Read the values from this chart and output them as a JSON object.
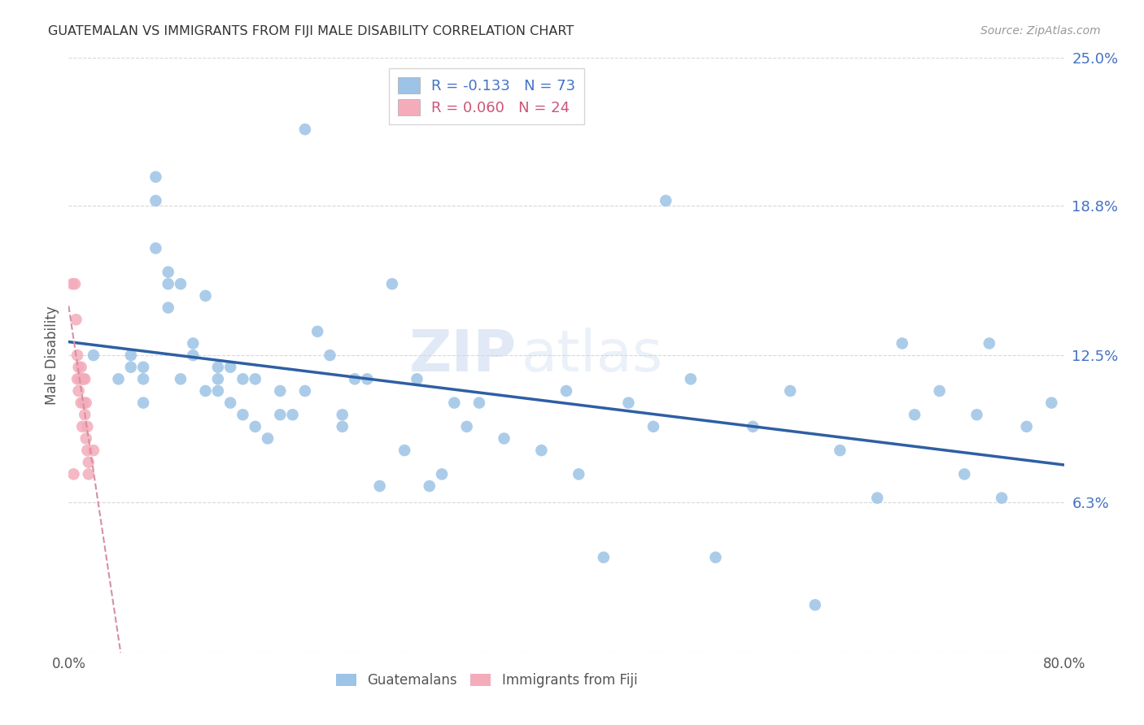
{
  "title": "GUATEMALAN VS IMMIGRANTS FROM FIJI MALE DISABILITY CORRELATION CHART",
  "source": "Source: ZipAtlas.com",
  "ylabel_label": "Male Disability",
  "xlim": [
    0.0,
    0.8
  ],
  "ylim": [
    0.0,
    0.25
  ],
  "ytick_vals": [
    0.0,
    0.063,
    0.125,
    0.188,
    0.25
  ],
  "ytick_labels": [
    "",
    "6.3%",
    "12.5%",
    "18.8%",
    "25.0%"
  ],
  "xtick_vals": [
    0.0,
    0.2,
    0.4,
    0.6,
    0.8
  ],
  "xtick_labels": [
    "0.0%",
    "",
    "",
    "",
    "80.0%"
  ],
  "bg_color": "#ffffff",
  "grid_color": "#d8d8d8",
  "right_tick_color": "#4472c4",
  "guatemalan_color": "#9dc3e6",
  "fiji_color": "#f4acbb",
  "trendline_guatemalan_color": "#2e5fa3",
  "trendline_fiji_color": "#d78fa0",
  "legend_guatemalan_r": "R = -0.133",
  "legend_guatemalan_n": "N = 73",
  "legend_fiji_r": "R = 0.060",
  "legend_fiji_n": "N = 24",
  "watermark_zip": "ZIP",
  "watermark_atlas": "atlas",
  "guatemalan_x": [
    0.02,
    0.04,
    0.05,
    0.05,
    0.06,
    0.06,
    0.06,
    0.07,
    0.07,
    0.07,
    0.08,
    0.08,
    0.08,
    0.09,
    0.09,
    0.1,
    0.1,
    0.11,
    0.11,
    0.12,
    0.12,
    0.12,
    0.13,
    0.13,
    0.14,
    0.14,
    0.15,
    0.15,
    0.16,
    0.17,
    0.17,
    0.18,
    0.19,
    0.19,
    0.2,
    0.21,
    0.22,
    0.22,
    0.23,
    0.24,
    0.25,
    0.26,
    0.27,
    0.28,
    0.29,
    0.3,
    0.31,
    0.32,
    0.33,
    0.35,
    0.38,
    0.4,
    0.41,
    0.43,
    0.45,
    0.47,
    0.48,
    0.5,
    0.52,
    0.55,
    0.58,
    0.6,
    0.62,
    0.65,
    0.68,
    0.7,
    0.72,
    0.74,
    0.75,
    0.77,
    0.79,
    0.67,
    0.73
  ],
  "guatemalan_y": [
    0.125,
    0.115,
    0.12,
    0.125,
    0.115,
    0.12,
    0.105,
    0.2,
    0.19,
    0.17,
    0.16,
    0.155,
    0.145,
    0.155,
    0.115,
    0.13,
    0.125,
    0.15,
    0.11,
    0.12,
    0.11,
    0.115,
    0.12,
    0.105,
    0.115,
    0.1,
    0.115,
    0.095,
    0.09,
    0.1,
    0.11,
    0.1,
    0.22,
    0.11,
    0.135,
    0.125,
    0.1,
    0.095,
    0.115,
    0.115,
    0.07,
    0.155,
    0.085,
    0.115,
    0.07,
    0.075,
    0.105,
    0.095,
    0.105,
    0.09,
    0.085,
    0.11,
    0.075,
    0.04,
    0.105,
    0.095,
    0.19,
    0.115,
    0.04,
    0.095,
    0.11,
    0.02,
    0.085,
    0.065,
    0.1,
    0.11,
    0.075,
    0.13,
    0.065,
    0.095,
    0.105,
    0.13,
    0.1
  ],
  "fiji_x": [
    0.003,
    0.004,
    0.005,
    0.006,
    0.007,
    0.007,
    0.008,
    0.008,
    0.009,
    0.01,
    0.01,
    0.011,
    0.011,
    0.012,
    0.012,
    0.013,
    0.013,
    0.014,
    0.014,
    0.015,
    0.015,
    0.016,
    0.016,
    0.02
  ],
  "fiji_y": [
    0.155,
    0.075,
    0.155,
    0.14,
    0.125,
    0.115,
    0.12,
    0.11,
    0.115,
    0.12,
    0.105,
    0.115,
    0.095,
    0.115,
    0.105,
    0.115,
    0.1,
    0.105,
    0.09,
    0.085,
    0.095,
    0.08,
    0.075,
    0.085
  ]
}
